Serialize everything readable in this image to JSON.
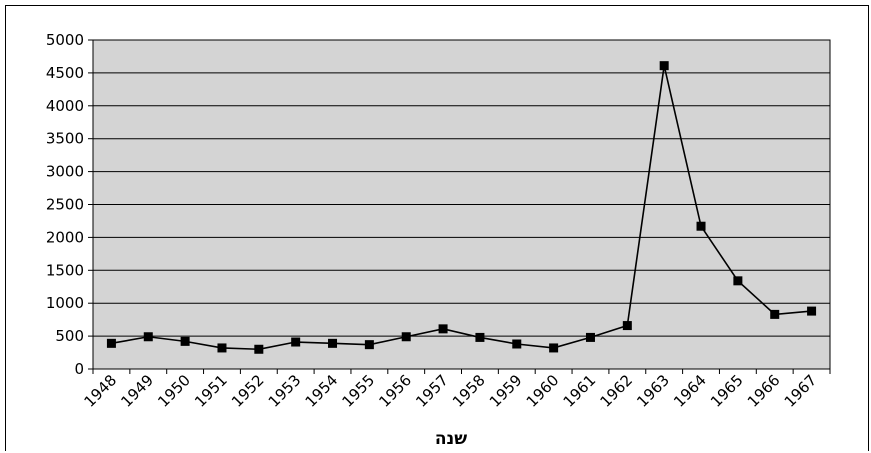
{
  "colors": {
    "plot_background": "#d4d4d4",
    "gridline": "#000000",
    "series_line": "#000000",
    "marker": "#000000"
  },
  "chart_data": {
    "type": "line",
    "xlabel": "שנה",
    "ylabel": "",
    "ylim": [
      0,
      5000
    ],
    "y_ticks": [
      0,
      500,
      1000,
      1500,
      2000,
      2500,
      3000,
      3500,
      4000,
      4500,
      5000
    ],
    "grid": true,
    "marker": "square",
    "categories": [
      "1948",
      "1949",
      "1950",
      "1951",
      "1952",
      "1953",
      "1954",
      "1955",
      "1956",
      "1957",
      "1958",
      "1959",
      "1960",
      "1961",
      "1962",
      "1963",
      "1964",
      "1965",
      "1966",
      "1967"
    ],
    "series": [
      {
        "values": [
          390,
          490,
          420,
          320,
          300,
          410,
          390,
          370,
          490,
          610,
          480,
          380,
          320,
          480,
          660,
          4610,
          2170,
          1340,
          830,
          880
        ]
      }
    ]
  }
}
